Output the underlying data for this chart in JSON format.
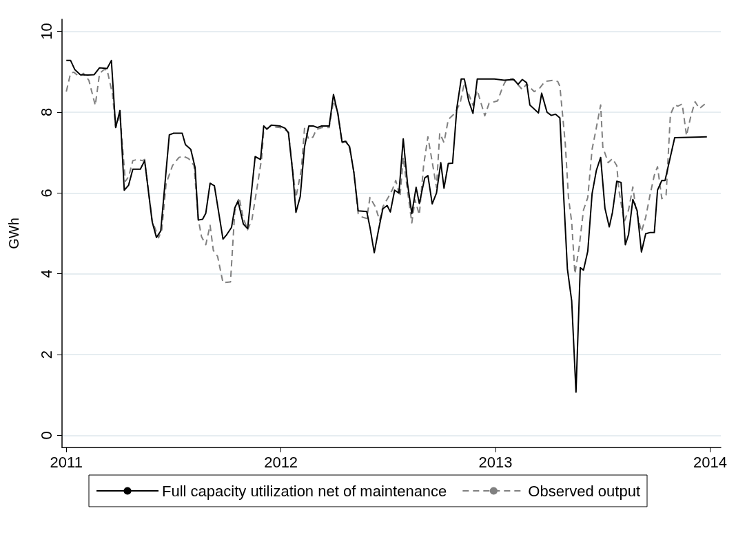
{
  "chart_data": {
    "type": "line",
    "ylabel": "GWh",
    "xlim": [
      2010.98,
      2014.05
    ],
    "ylim": [
      -0.3,
      10.3
    ],
    "xticks": [
      2011,
      2012,
      2013,
      2014
    ],
    "yticks": [
      0,
      2,
      4,
      6,
      8,
      10
    ],
    "grid": "y",
    "legend": "bottom",
    "marker": "none",
    "series": [
      {
        "name": "Full capacity utilization net of maintenance",
        "color": "#000000",
        "line_style": "solid",
        "x": [
          2011.0,
          2011.02,
          2011.04,
          2011.065,
          2011.1,
          2011.13,
          2011.155,
          2011.19,
          2011.21,
          2011.23,
          2011.25,
          2011.27,
          2011.29,
          2011.31,
          2011.345,
          2011.365,
          2011.4,
          2011.42,
          2011.44,
          2011.48,
          2011.5,
          2011.54,
          2011.555,
          2011.58,
          2011.6,
          2011.615,
          2011.635,
          2011.65,
          2011.67,
          2011.69,
          2011.73,
          2011.745,
          2011.77,
          2011.785,
          2011.8,
          2011.825,
          2011.845,
          2011.88,
          2011.905,
          2011.92,
          2011.935,
          2011.955,
          2011.995,
          2012.02,
          2012.035,
          2012.055,
          2012.07,
          2012.09,
          2012.11,
          2012.13,
          2012.15,
          2012.17,
          2012.19,
          2012.225,
          2012.245,
          2012.265,
          2012.285,
          2012.3,
          2012.32,
          2012.34,
          2012.36,
          2012.4,
          2012.415,
          2012.435,
          2012.455,
          2012.475,
          2012.495,
          2012.51,
          2012.53,
          2012.55,
          2012.57,
          2012.59,
          2012.61,
          2012.63,
          2012.645,
          2012.67,
          2012.685,
          2012.705,
          2012.725,
          2012.745,
          2012.76,
          2012.78,
          2012.8,
          2012.82,
          2012.84,
          2012.855,
          2012.875,
          2012.895,
          2012.915,
          2012.995,
          2013.04,
          2013.085,
          2013.105,
          2013.125,
          2013.145,
          2013.16,
          2013.2,
          2013.215,
          2013.24,
          2013.26,
          2013.28,
          2013.3,
          2013.315,
          2013.335,
          2013.355,
          2013.375,
          2013.395,
          2013.41,
          2013.43,
          2013.45,
          2013.47,
          2013.49,
          2013.51,
          2013.53,
          2013.545,
          2013.565,
          2013.585,
          2013.605,
          2013.62,
          2013.64,
          2013.66,
          2013.68,
          2013.7,
          2013.72,
          2013.74,
          2013.755,
          2013.775,
          2013.79,
          2013.835,
          2013.985
        ],
        "values": [
          9.28,
          9.28,
          9.05,
          8.93,
          8.92,
          8.93,
          9.1,
          9.08,
          9.28,
          7.62,
          8.04,
          6.07,
          6.19,
          6.59,
          6.59,
          6.8,
          5.29,
          4.9,
          5.06,
          7.44,
          7.48,
          7.48,
          7.2,
          7.08,
          6.63,
          5.33,
          5.35,
          5.5,
          6.24,
          6.18,
          4.86,
          4.95,
          5.15,
          5.63,
          5.8,
          5.23,
          5.12,
          6.9,
          6.83,
          7.66,
          7.58,
          7.68,
          7.66,
          7.6,
          7.49,
          6.51,
          5.52,
          5.91,
          7.14,
          7.66,
          7.66,
          7.62,
          7.66,
          7.66,
          8.44,
          7.97,
          7.26,
          7.28,
          7.15,
          6.51,
          5.56,
          5.54,
          5.15,
          4.52,
          5.09,
          5.61,
          5.69,
          5.53,
          6.07,
          6.0,
          7.34,
          6.23,
          5.49,
          6.14,
          5.74,
          6.37,
          6.43,
          5.73,
          6.0,
          6.75,
          6.12,
          6.73,
          6.74,
          8.11,
          8.82,
          8.82,
          8.28,
          7.97,
          8.82,
          8.82,
          8.79,
          8.81,
          8.69,
          8.81,
          8.73,
          8.18,
          7.98,
          8.47,
          8.0,
          7.92,
          7.95,
          7.86,
          6.2,
          4.12,
          3.33,
          1.07,
          4.15,
          4.09,
          4.56,
          5.98,
          6.56,
          6.88,
          5.62,
          5.16,
          5.52,
          6.29,
          6.26,
          4.72,
          4.97,
          5.84,
          5.56,
          4.54,
          4.99,
          5.02,
          5.02,
          6.07,
          6.31,
          6.31,
          7.37,
          7.39
        ]
      },
      {
        "name": "Observed output",
        "color": "#808080",
        "line_style": "dashed",
        "x": [
          2011.0,
          2011.02,
          2011.035,
          2011.06,
          2011.08,
          2011.105,
          2011.135,
          2011.155,
          2011.175,
          2011.19,
          2011.215,
          2011.23,
          2011.25,
          2011.275,
          2011.29,
          2011.31,
          2011.33,
          2011.355,
          2011.365,
          2011.4,
          2011.43,
          2011.445,
          2011.465,
          2011.495,
          2011.525,
          2011.545,
          2011.57,
          2011.595,
          2011.615,
          2011.63,
          2011.65,
          2011.67,
          2011.685,
          2011.705,
          2011.73,
          2011.765,
          2011.785,
          2011.805,
          2011.825,
          2011.845,
          2011.865,
          2011.89,
          2011.91,
          2011.92,
          2011.95,
          2011.995,
          2012.01,
          2012.035,
          2012.055,
          2012.07,
          2012.095,
          2012.11,
          2012.13,
          2012.15,
          2012.165,
          2012.19,
          2012.225,
          2012.245,
          2012.265,
          2012.285,
          2012.305,
          2012.32,
          2012.34,
          2012.36,
          2012.38,
          2012.4,
          2012.415,
          2012.44,
          2012.46,
          2012.475,
          2012.5,
          2012.52,
          2012.535,
          2012.555,
          2012.57,
          2012.59,
          2012.61,
          2012.625,
          2012.645,
          2012.665,
          2012.685,
          2012.705,
          2012.725,
          2012.74,
          2012.76,
          2012.78,
          2012.81,
          2012.835,
          2012.855,
          2012.875,
          2012.895,
          2012.915,
          2012.95,
          2012.97,
          2013.01,
          2013.035,
          2013.05,
          2013.08,
          2013.125,
          2013.145,
          2013.18,
          2013.205,
          2013.23,
          2013.27,
          2013.29,
          2013.3,
          2013.325,
          2013.34,
          2013.355,
          2013.37,
          2013.39,
          2013.41,
          2013.43,
          2013.45,
          2013.465,
          2013.49,
          2013.5,
          2013.525,
          2013.545,
          2013.565,
          2013.575,
          2013.6,
          2013.62,
          2013.64,
          2013.655,
          2013.68,
          2013.7,
          2013.72,
          2013.74,
          2013.755,
          2013.775,
          2013.795,
          2013.815,
          2013.835,
          2013.85,
          2013.87,
          2013.89,
          2013.91,
          2013.93,
          2013.95,
          2013.975
        ],
        "values": [
          8.51,
          8.97,
          8.99,
          8.88,
          8.96,
          8.79,
          8.17,
          8.96,
          9.05,
          9.05,
          8.45,
          7.62,
          7.94,
          6.29,
          6.4,
          6.8,
          6.83,
          6.8,
          6.83,
          5.32,
          4.89,
          5.09,
          6.23,
          6.68,
          6.88,
          6.91,
          6.85,
          6.68,
          5.35,
          4.92,
          4.72,
          5.2,
          4.58,
          4.43,
          3.78,
          3.8,
          5.54,
          5.89,
          5.37,
          5.09,
          5.34,
          6.17,
          6.85,
          7.54,
          7.65,
          7.62,
          7.6,
          7.51,
          6.57,
          5.89,
          6.57,
          7.6,
          7.33,
          7.39,
          7.57,
          7.62,
          7.62,
          8.28,
          8.0,
          7.24,
          7.28,
          7.11,
          6.51,
          5.49,
          5.4,
          5.37,
          5.89,
          5.66,
          5.32,
          5.66,
          5.89,
          6.09,
          6.31,
          5.91,
          6.88,
          6.06,
          5.26,
          5.83,
          5.46,
          6.68,
          7.39,
          6.77,
          6.14,
          7.48,
          7.25,
          7.82,
          7.97,
          8.22,
          8.73,
          8.45,
          8.17,
          8.54,
          7.91,
          8.22,
          8.28,
          8.65,
          8.8,
          8.83,
          8.56,
          8.7,
          8.51,
          8.59,
          8.76,
          8.79,
          8.76,
          8.64,
          7.23,
          5.89,
          5.28,
          4.0,
          4.67,
          5.58,
          5.89,
          7.08,
          7.48,
          8.18,
          7.14,
          6.75,
          6.85,
          6.68,
          6.07,
          5.29,
          5.58,
          6.15,
          5.58,
          5.04,
          5.4,
          5.95,
          6.44,
          6.65,
          5.86,
          5.95,
          7.94,
          8.18,
          8.15,
          8.2,
          7.42,
          7.9,
          8.26,
          8.09,
          8.2
        ]
      }
    ]
  }
}
